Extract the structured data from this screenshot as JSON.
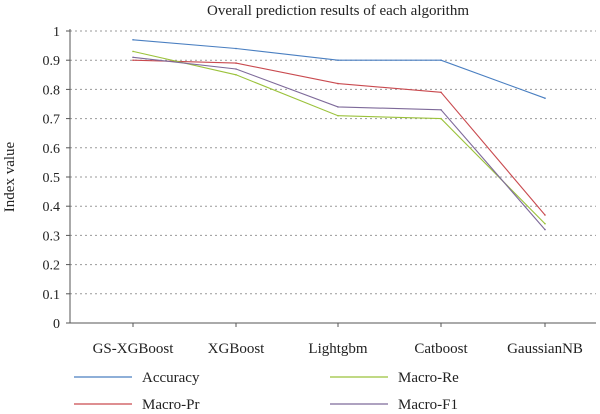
{
  "chart_data": {
    "type": "line",
    "title": "Overall prediction results of each algorithm",
    "xlabel": "",
    "ylabel": "Index value",
    "categories": [
      "GS-XGBoost",
      "XGBoost",
      "Lightgbm",
      "Catboost",
      "GaussianNB"
    ],
    "ylim": [
      0,
      1
    ],
    "yticks": [
      "0",
      "0.1",
      "0.2",
      "0.3",
      "0.4",
      "0.5",
      "0.6",
      "0.7",
      "0.8",
      "0.9",
      "1"
    ],
    "grid": true,
    "legend_position": "bottom",
    "series": [
      {
        "name": "Accuracy",
        "color": "#4a7fc1",
        "values": [
          0.97,
          0.94,
          0.9,
          0.9,
          0.77
        ]
      },
      {
        "name": "Macro-Pr",
        "color": "#c94a4f",
        "values": [
          0.9,
          0.89,
          0.82,
          0.79,
          0.37
        ]
      },
      {
        "name": "Macro-Re",
        "color": "#9bc23b",
        "values": [
          0.93,
          0.85,
          0.71,
          0.7,
          0.34
        ]
      },
      {
        "name": "Macro-F1",
        "color": "#7e6a9a",
        "values": [
          0.91,
          0.87,
          0.74,
          0.73,
          0.32
        ]
      }
    ]
  }
}
